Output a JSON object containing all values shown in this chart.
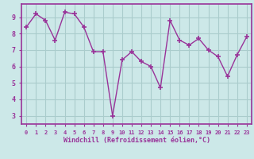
{
  "x": [
    0,
    1,
    2,
    3,
    4,
    5,
    6,
    7,
    8,
    9,
    10,
    11,
    12,
    13,
    14,
    15,
    16,
    17,
    18,
    19,
    20,
    21,
    22,
    23
  ],
  "y": [
    8.4,
    9.2,
    8.8,
    7.6,
    9.3,
    9.2,
    8.4,
    6.9,
    6.9,
    3.0,
    6.4,
    6.9,
    6.3,
    6.0,
    4.7,
    8.8,
    7.6,
    7.3,
    7.7,
    7.0,
    6.6,
    5.4,
    6.7,
    7.8
  ],
  "line_color": "#993399",
  "marker": "+",
  "bg_color": "#cce8e8",
  "grid_color": "#aacccc",
  "xlabel": "Windchill (Refroidissement éolien,°C)",
  "ylim": [
    2.5,
    9.8
  ],
  "xlim": [
    -0.5,
    23.5
  ],
  "yticks": [
    3,
    4,
    5,
    6,
    7,
    8,
    9
  ],
  "xticks": [
    0,
    1,
    2,
    3,
    4,
    5,
    6,
    7,
    8,
    9,
    10,
    11,
    12,
    13,
    14,
    15,
    16,
    17,
    18,
    19,
    20,
    21,
    22,
    23
  ],
  "tick_color": "#993399",
  "label_color": "#993399",
  "axis_color": "#993399",
  "font_name": "monospace"
}
